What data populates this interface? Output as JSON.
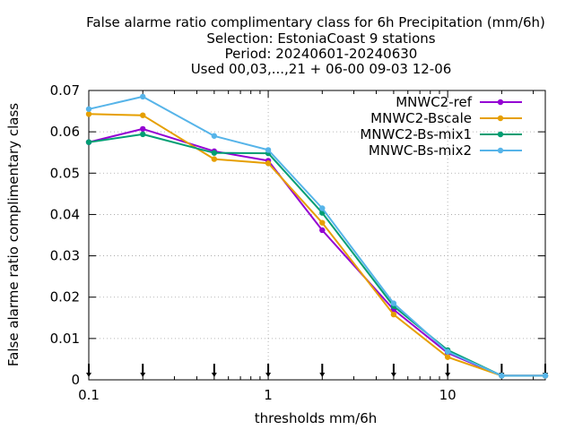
{
  "chart_data": {
    "type": "line",
    "title_lines": [
      "False alarme ratio complimentary class  for 6h Precipitation (mm/6h)",
      "Selection: EstoniaCoast      9 stations",
      "Period: 20240601-20240630",
      "Used 00,03,...,21 + 06-00 09-03 12-06"
    ],
    "xlabel": "thresholds mm/6h",
    "ylabel": "False alarme ratio complimentary class",
    "x_scale": "log",
    "xlim": [
      0.1,
      35
    ],
    "ylim": [
      0,
      0.07
    ],
    "x_ticks": [
      {
        "value": 0.1,
        "label": "0.1"
      },
      {
        "value": 1,
        "label": "1"
      },
      {
        "value": 10,
        "label": "10"
      }
    ],
    "y_ticks": [
      {
        "value": 0,
        "label": "0"
      },
      {
        "value": 0.01,
        "label": "0.01"
      },
      {
        "value": 0.02,
        "label": "0.02"
      },
      {
        "value": 0.03,
        "label": "0.03"
      },
      {
        "value": 0.04,
        "label": "0.04"
      },
      {
        "value": 0.05,
        "label": "0.05"
      },
      {
        "value": 0.06,
        "label": "0.06"
      },
      {
        "value": 0.07,
        "label": "0.07"
      }
    ],
    "grid": true,
    "legend_position": "top-right",
    "threshold_markers": [
      0.1,
      0.2,
      0.5,
      1,
      2,
      5,
      10,
      20,
      35
    ],
    "x": [
      0.1,
      0.2,
      0.5,
      1,
      2,
      5,
      10,
      20,
      35
    ],
    "series": [
      {
        "name": "MNWC2-ref",
        "color": "#9400d3",
        "values": [
          0.0575,
          0.0607,
          0.0553,
          0.053,
          0.0362,
          0.017,
          0.0065,
          0.001,
          0.001
        ]
      },
      {
        "name": "MNWC2-Bscale",
        "color": "#e69f00",
        "values": [
          0.0643,
          0.064,
          0.0534,
          0.0524,
          0.038,
          0.0158,
          0.0055,
          0.001,
          0.001
        ]
      },
      {
        "name": "MNWC2-Bs-mix1",
        "color": "#009e73",
        "values": [
          0.0575,
          0.0594,
          0.0549,
          0.0548,
          0.0404,
          0.0178,
          0.0072,
          0.001,
          0.001
        ]
      },
      {
        "name": "MNWC-Bs-mix2",
        "color": "#56b4e9",
        "values": [
          0.0655,
          0.0685,
          0.059,
          0.0556,
          0.0415,
          0.0185,
          0.0068,
          0.001,
          0.001
        ]
      }
    ]
  }
}
